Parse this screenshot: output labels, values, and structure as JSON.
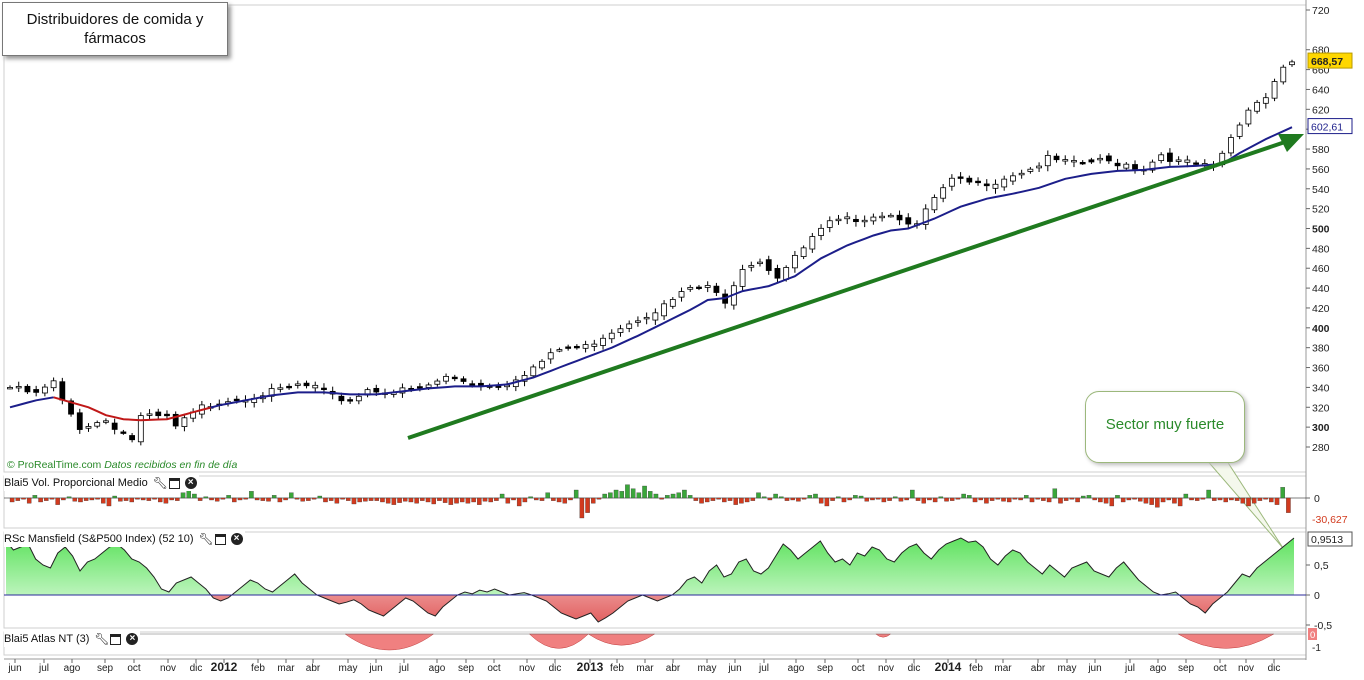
{
  "title": "Distribuidores de comida y fármacos",
  "credit": {
    "brand": "© ProRealTime.com",
    "note": "Datos recibidos en fin de día"
  },
  "annotation": {
    "text": "Sector muy fuerte"
  },
  "colors": {
    "up_fill": "#ffffff",
    "down_fill": "#000000",
    "ma_blue": "#1c1e8a",
    "ma_red": "#c01818",
    "trend_arrow": "#1f7a1f",
    "vol_pos": "#3aa63a",
    "vol_neg": "#d23a1e",
    "rs_pos": "#9ff09f",
    "rs_neg": "#f09090",
    "price_badge": "#ffd700"
  },
  "chart_data": [
    {
      "type": "candlestick",
      "name": "price",
      "yaxis": {
        "ticks": [
          720,
          680,
          660,
          640,
          620,
          600,
          580,
          560,
          540,
          520,
          500,
          480,
          460,
          440,
          420,
          400,
          380,
          360,
          340,
          320,
          300,
          280
        ]
      },
      "last_price": "668,57",
      "ma_value": "602,61",
      "x_months": [
        "jun",
        "jul",
        "ago",
        "sep",
        "oct",
        "nov",
        "dic",
        "2012",
        "feb",
        "mar",
        "abr",
        "may",
        "jun",
        "jul",
        "ago",
        "sep",
        "oct",
        "nov",
        "dic",
        "2013",
        "feb",
        "mar",
        "abr",
        "may",
        "jun",
        "jul",
        "ago",
        "sep",
        "oct",
        "nov",
        "dic",
        "2014",
        "feb",
        "mar",
        "abr",
        "may",
        "jun",
        "jul",
        "ago",
        "sep",
        "oct",
        "nov",
        "dic"
      ],
      "close_path": [
        [
          0,
          340
        ],
        [
          3,
          333
        ],
        [
          5,
          345
        ],
        [
          6,
          325
        ],
        [
          8,
          300
        ],
        [
          11,
          307
        ],
        [
          14,
          288
        ],
        [
          15,
          310
        ],
        [
          18,
          310
        ],
        [
          19,
          300
        ],
        [
          22,
          320
        ],
        [
          25,
          328
        ],
        [
          28,
          332
        ],
        [
          31,
          337
        ],
        [
          33,
          342
        ],
        [
          35,
          340
        ],
        [
          37,
          330
        ],
        [
          39,
          327
        ],
        [
          41,
          338
        ],
        [
          44,
          336
        ],
        [
          47,
          338
        ],
        [
          50,
          350
        ],
        [
          53,
          345
        ],
        [
          55,
          341
        ],
        [
          57,
          345
        ],
        [
          60,
          360
        ],
        [
          63,
          378
        ],
        [
          66,
          381
        ],
        [
          69,
          397
        ],
        [
          72,
          410
        ],
        [
          75,
          422
        ],
        [
          78,
          440
        ],
        [
          80,
          440
        ],
        [
          82,
          428
        ],
        [
          84,
          462
        ],
        [
          86,
          468
        ],
        [
          88,
          452
        ],
        [
          90,
          470
        ],
        [
          92,
          490
        ],
        [
          94,
          505
        ],
        [
          97,
          510
        ],
        [
          100,
          515
        ],
        [
          102,
          512
        ],
        [
          104,
          503
        ],
        [
          106,
          530
        ],
        [
          108,
          548
        ],
        [
          111,
          545
        ],
        [
          113,
          548
        ],
        [
          115,
          555
        ],
        [
          117,
          560
        ],
        [
          119,
          570
        ],
        [
          122,
          565
        ],
        [
          125,
          568
        ],
        [
          128,
          565
        ],
        [
          130,
          560
        ],
        [
          132,
          575
        ],
        [
          134,
          567
        ],
        [
          136,
          565
        ],
        [
          138,
          560
        ],
        [
          140,
          590
        ],
        [
          142,
          620
        ],
        [
          144,
          635
        ],
        [
          146,
          663
        ],
        [
          147,
          668
        ]
      ],
      "ma_path": [
        [
          0,
          320
        ],
        [
          3,
          327
        ],
        [
          5,
          330
        ],
        [
          7,
          325
        ],
        [
          9,
          320
        ],
        [
          11,
          312
        ],
        [
          13,
          308
        ],
        [
          15,
          307
        ],
        [
          18,
          308
        ],
        [
          21,
          315
        ],
        [
          24,
          322
        ],
        [
          27,
          327
        ],
        [
          30,
          332
        ],
        [
          33,
          335
        ],
        [
          36,
          335
        ],
        [
          39,
          333
        ],
        [
          42,
          333
        ],
        [
          45,
          336
        ],
        [
          48,
          339
        ],
        [
          51,
          341
        ],
        [
          54,
          341
        ],
        [
          57,
          343
        ],
        [
          60,
          350
        ],
        [
          63,
          360
        ],
        [
          66,
          370
        ],
        [
          69,
          380
        ],
        [
          72,
          392
        ],
        [
          75,
          405
        ],
        [
          78,
          418
        ],
        [
          80,
          428
        ],
        [
          82,
          430
        ],
        [
          84,
          437
        ],
        [
          87,
          442
        ],
        [
          90,
          452
        ],
        [
          93,
          470
        ],
        [
          96,
          483
        ],
        [
          99,
          493
        ],
        [
          101,
          498
        ],
        [
          103,
          500
        ],
        [
          106,
          510
        ],
        [
          109,
          522
        ],
        [
          112,
          530
        ],
        [
          115,
          535
        ],
        [
          118,
          541
        ],
        [
          121,
          550
        ],
        [
          124,
          555
        ],
        [
          127,
          558
        ],
        [
          130,
          559
        ],
        [
          133,
          562
        ],
        [
          136,
          563
        ],
        [
          139,
          565
        ],
        [
          141,
          576
        ],
        [
          144,
          590
        ],
        [
          147,
          602
        ]
      ],
      "ma_red_range": [
        5,
        23
      ]
    },
    {
      "type": "bar",
      "name": "Blai5 Vol. Proporcional Medio",
      "last_value": "-30,627",
      "yaxis": {
        "ticks": [
          0
        ]
      },
      "values": [
        -6,
        -4,
        -2,
        -8,
        4,
        -6,
        -4,
        -2,
        -10,
        -3,
        2,
        -5,
        -6,
        -4,
        -3,
        -2,
        -8,
        -12,
        3,
        -5,
        -4,
        -6,
        -2,
        -3,
        -4,
        -2,
        -6,
        -8,
        -3,
        -4,
        8,
        14,
        6,
        -4,
        2,
        -3,
        -5,
        -2,
        4,
        -6,
        -3,
        -2,
        10,
        -3,
        -4,
        -5,
        4,
        -6,
        -3,
        8,
        -2,
        -5,
        -4,
        -2,
        3,
        -6,
        -4,
        -8,
        -2,
        -4,
        -9,
        -6,
        -5,
        -4,
        -4,
        -6,
        -8,
        -10,
        -7,
        -5,
        -6,
        -8,
        -4,
        -6,
        -9,
        -4,
        -7,
        -10,
        -8,
        -6,
        -8,
        -6,
        -10,
        -5,
        -6,
        -4,
        6,
        -8,
        -3,
        -12,
        -6,
        2,
        -3,
        -4,
        8,
        -4,
        -6,
        -8,
        -3,
        12,
        -30,
        -22,
        -8,
        -2,
        6,
        8,
        12,
        10,
        20,
        14,
        8,
        18,
        10,
        6,
        -2,
        4,
        6,
        8,
        12,
        4,
        -4,
        -8,
        -6,
        -4,
        -2,
        -6,
        -4,
        -10,
        -8,
        -6,
        -4,
        8,
        2,
        -3,
        6,
        2,
        -4,
        -3,
        -5,
        -2,
        4,
        6,
        -8,
        -12,
        -4,
        2,
        -6,
        -3,
        4,
        3,
        -5,
        -3,
        -2,
        -6,
        -4,
        2,
        -5,
        -3,
        12,
        -4,
        -8,
        -3,
        -6,
        2,
        -5,
        -4,
        -2,
        6,
        4,
        -6,
        -3,
        -8,
        -4,
        -2,
        -5,
        -6,
        -2,
        -3,
        4,
        -6,
        -2,
        -4,
        -6,
        14,
        -8,
        -4,
        -2,
        -6,
        3,
        4,
        -3,
        -6,
        -8,
        -12,
        4,
        -6,
        -3,
        -2,
        -5,
        -8,
        -10,
        -14,
        -6,
        -3,
        -8,
        -12,
        6,
        -3,
        -4,
        -2,
        12,
        -4,
        -3,
        -6,
        -3,
        -4,
        -8,
        -12,
        -8,
        -4,
        -2,
        -6,
        -10,
        16,
        -22
      ]
    },
    {
      "type": "area",
      "name": "RSc Mansfield (S&P500 Index) (52 10)",
      "last_value": "0,9513",
      "yaxis": {
        "ticks": [
          "0,5",
          "0",
          "-0,5"
        ]
      },
      "values": [
        0.9,
        0.75,
        0.8,
        0.85,
        0.6,
        0.5,
        0.45,
        0.7,
        0.8,
        0.65,
        0.4,
        0.55,
        0.6,
        0.7,
        0.8,
        0.85,
        0.75,
        0.6,
        0.55,
        0.45,
        0.3,
        0.1,
        0.05,
        0.2,
        0.25,
        0.3,
        0.2,
        0.1,
        -0.05,
        -0.1,
        -0.05,
        0.05,
        0.15,
        0.25,
        0.2,
        0.1,
        0.05,
        0.15,
        0.25,
        0.35,
        0.2,
        0.1,
        0.0,
        -0.05,
        -0.1,
        -0.15,
        -0.12,
        -0.08,
        -0.15,
        -0.25,
        -0.3,
        -0.35,
        -0.25,
        -0.15,
        -0.05,
        -0.1,
        -0.2,
        -0.3,
        -0.35,
        -0.2,
        -0.1,
        0.0,
        0.05,
        0.02,
        0.08,
        0.05,
        0.1,
        0.05,
        0.0,
        0.02,
        0.04,
        0.0,
        -0.05,
        -0.1,
        -0.2,
        -0.3,
        -0.35,
        -0.4,
        -0.35,
        -0.3,
        -0.45,
        -0.38,
        -0.3,
        -0.2,
        -0.1,
        -0.05,
        0.0,
        -0.05,
        -0.1,
        -0.05,
        0.0,
        0.1,
        0.25,
        0.3,
        0.2,
        0.4,
        0.5,
        0.3,
        0.35,
        0.55,
        0.6,
        0.4,
        0.35,
        0.45,
        0.65,
        0.85,
        0.75,
        0.6,
        0.7,
        0.8,
        0.9,
        0.7,
        0.55,
        0.6,
        0.5,
        0.7,
        0.65,
        0.8,
        0.75,
        0.6,
        0.55,
        0.7,
        0.8,
        0.85,
        0.7,
        0.6,
        0.75,
        0.85,
        0.9,
        0.95,
        0.88,
        0.9,
        0.8,
        0.6,
        0.5,
        0.65,
        0.75,
        0.7,
        0.55,
        0.45,
        0.35,
        0.5,
        0.4,
        0.3,
        0.45,
        0.5,
        0.55,
        0.4,
        0.35,
        0.3,
        0.45,
        0.55,
        0.4,
        0.25,
        0.15,
        0.05,
        0.0,
        0.02,
        0.05,
        -0.05,
        -0.15,
        -0.2,
        -0.3,
        -0.15,
        -0.05,
        0.05,
        0.2,
        0.35,
        0.3,
        0.45,
        0.55,
        0.65,
        0.75,
        0.85,
        0.95
      ]
    },
    {
      "type": "area",
      "name": "Blai5 Atlas NT (3)",
      "yaxis": {
        "ticks": [
          "0",
          "-1"
        ]
      },
      "neg_segments": [
        [
          46,
          58,
          -1.0
        ],
        [
          71,
          79,
          -0.9
        ],
        [
          79,
          88,
          -0.7
        ],
        [
          118,
          120,
          -0.2
        ],
        [
          159,
          172,
          -0.9
        ]
      ]
    }
  ]
}
